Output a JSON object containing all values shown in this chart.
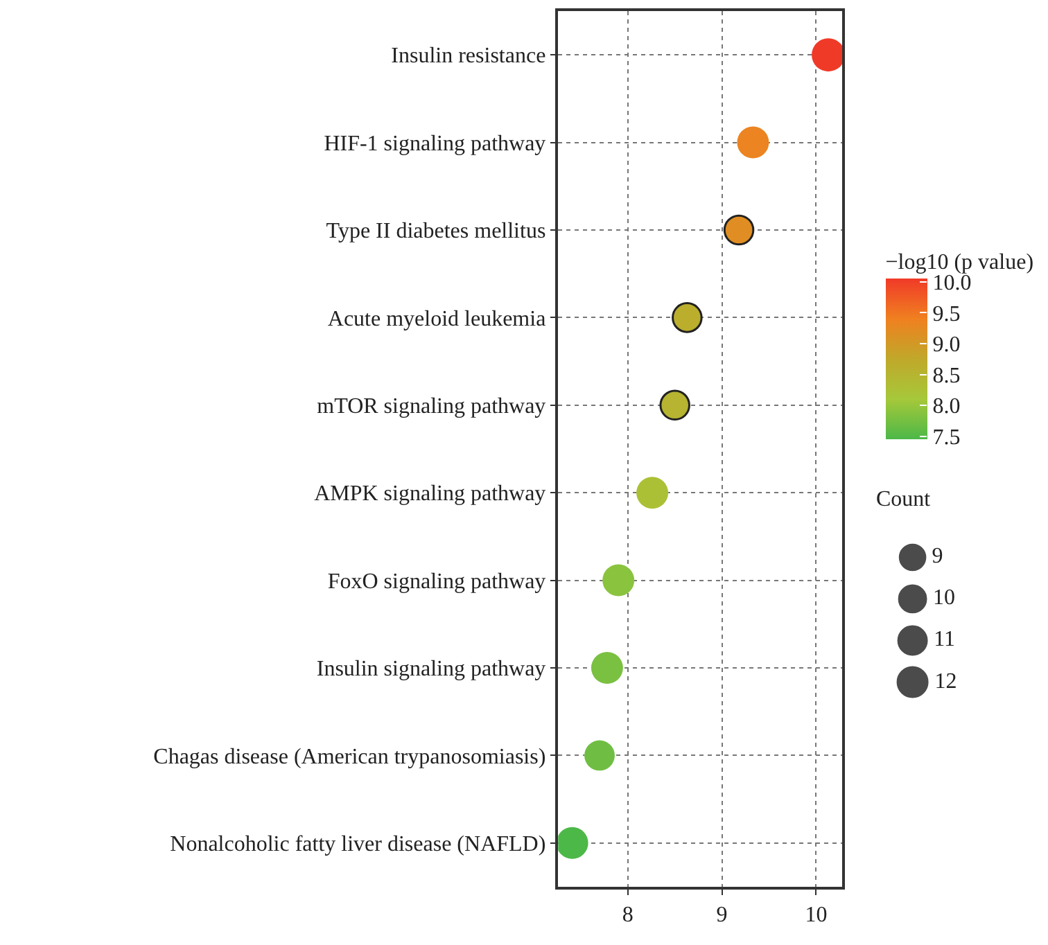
{
  "chart_data": {
    "type": "bubble",
    "categories": [
      "Insulin resistance",
      "HIF-1 signaling pathway",
      "Type II diabetes mellitus",
      "Acute myeloid leukemia",
      "mTOR signaling pathway",
      "AMPK signaling pathway",
      "FoxO signaling pathway",
      "Insulin signaling pathway",
      "Chagas disease (American trypanosomiasis)",
      "Nonalcoholic fatty liver disease (NAFLD)"
    ],
    "orientation": "horizontal",
    "values": [
      10.13,
      9.33,
      9.18,
      8.63,
      8.5,
      8.26,
      7.9,
      7.78,
      7.7,
      7.41
    ],
    "cvalues": [
      10.13,
      9.33,
      9.18,
      8.63,
      8.5,
      8.26,
      7.9,
      7.78,
      7.7,
      7.41
    ],
    "sizes": [
      12,
      11,
      9,
      9,
      9,
      11,
      11,
      11,
      10,
      11
    ],
    "size_legend": [
      9,
      10,
      11,
      12
    ],
    "legend_title": "Count",
    "clabel": "−log10 (p value)",
    "clim": [
      7.45,
      10.05
    ],
    "cticks": [
      {
        "value": 7.5,
        "label": "7.5"
      },
      {
        "value": 8,
        "label": "8.0"
      },
      {
        "value": 8.5,
        "label": "8.5"
      },
      {
        "value": 9,
        "label": "9.0"
      },
      {
        "value": 9.5,
        "label": "9.5"
      },
      {
        "value": 10,
        "label": "10.0"
      }
    ],
    "xlim": [
      7.26,
      10.28
    ],
    "xticks": [
      8,
      9,
      10
    ],
    "grid": true
  }
}
